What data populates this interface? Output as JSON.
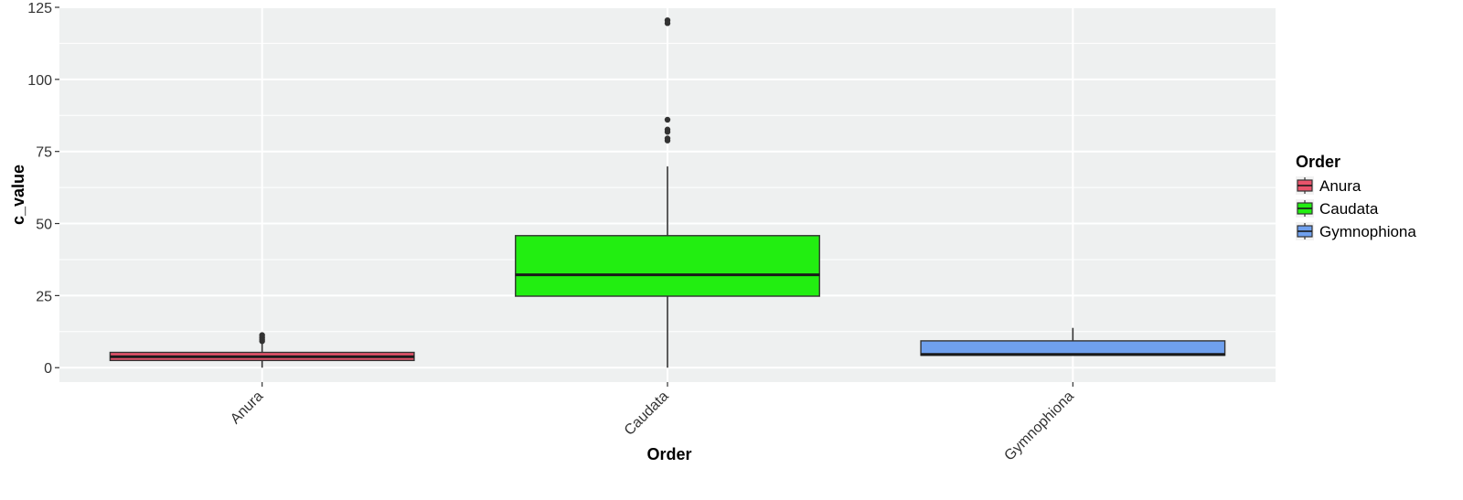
{
  "chart_data": {
    "type": "boxplot",
    "xlabel": "Order",
    "ylabel": "c_value",
    "ylim": [
      -5,
      125
    ],
    "y_ticks": [
      0,
      25,
      50,
      75,
      100,
      125
    ],
    "y_tick_labels": [
      "0",
      "25",
      "50",
      "75",
      "100",
      "125"
    ],
    "categories": [
      "Anura",
      "Caudata",
      "Gymnophiona"
    ],
    "grid": true,
    "legend": {
      "title": "Order",
      "position": "right",
      "entries": [
        "Anura",
        "Caudata",
        "Gymnophiona"
      ]
    },
    "series": [
      {
        "name": "Anura",
        "color": "#e8536b",
        "whisker_low": 0,
        "q1": 2.5,
        "median": 3.8,
        "q3": 5.3,
        "whisker_high": 8.8,
        "outliers": [
          9.2,
          9.8,
          10.5,
          11.3
        ]
      },
      {
        "name": "Caudata",
        "color": "#22ee11",
        "whisker_low": 0,
        "q1": 24.8,
        "median": 32.2,
        "q3": 45.8,
        "whisker_high": 69.8,
        "outliers": [
          78.8,
          79.5,
          81.8,
          82.6,
          86.0,
          119.5,
          120.5
        ]
      },
      {
        "name": "Gymnophiona",
        "color": "#6fa0ee",
        "whisker_low": 4.3,
        "q1": 4.3,
        "median": 4.6,
        "q3": 9.3,
        "whisker_high": 13.8,
        "outliers": []
      }
    ]
  }
}
